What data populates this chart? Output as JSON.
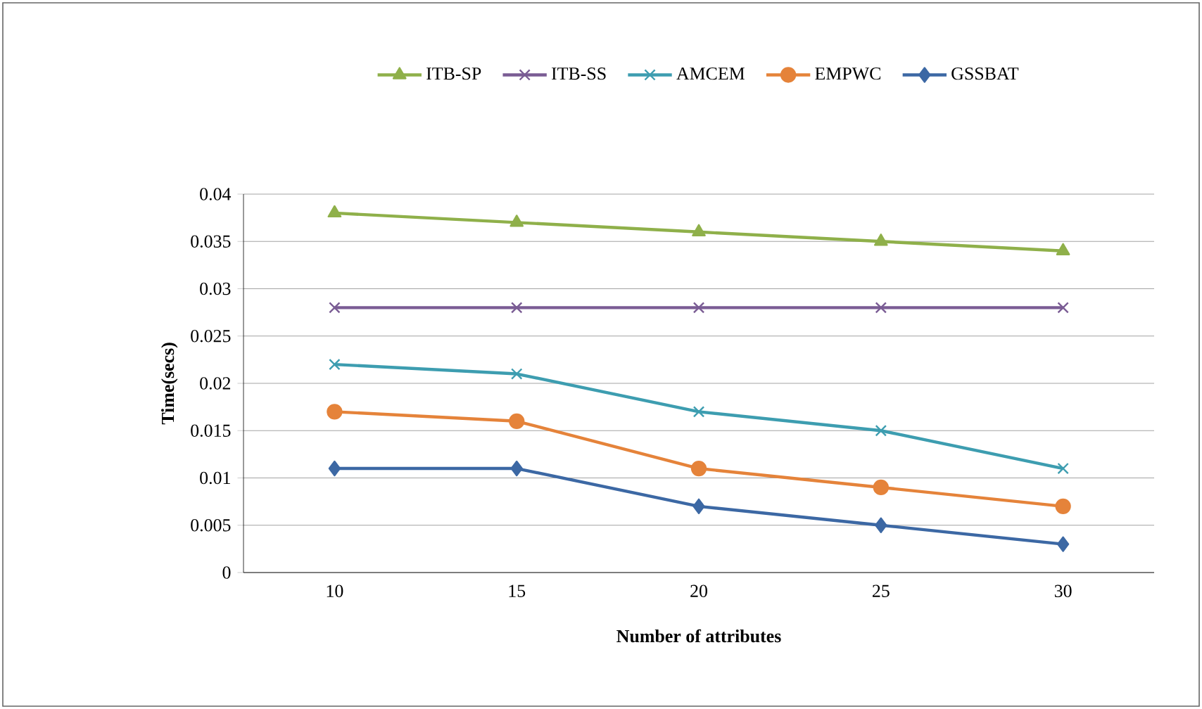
{
  "chart_data": {
    "type": "line",
    "xlabel": "Number of attributes",
    "ylabel": "Time(secs)",
    "categories": [
      "10",
      "15",
      "20",
      "25",
      "30"
    ],
    "series": [
      {
        "name": "ITB-SP",
        "color": "#8fb04a",
        "marker": "triangle",
        "values": [
          0.038,
          0.037,
          0.036,
          0.035,
          0.034
        ]
      },
      {
        "name": "ITB-SS",
        "color": "#7a5c94",
        "marker": "cross",
        "values": [
          0.028,
          0.028,
          0.028,
          0.028,
          0.028
        ]
      },
      {
        "name": "AMCEM",
        "color": "#3d9db0",
        "marker": "cross",
        "values": [
          0.022,
          0.021,
          0.017,
          0.015,
          0.011
        ]
      },
      {
        "name": "EMPWC",
        "color": "#e5833a",
        "marker": "circle",
        "values": [
          0.017,
          0.016,
          0.011,
          0.009,
          0.007
        ]
      },
      {
        "name": "GSSBAT",
        "color": "#3c68a4",
        "marker": "diamond",
        "values": [
          0.011,
          0.011,
          0.007,
          0.005,
          0.003
        ]
      }
    ],
    "ylim": [
      0,
      0.04
    ],
    "yticks": [
      0,
      0.005,
      0.01,
      0.015,
      0.02,
      0.025,
      0.03,
      0.035,
      0.04
    ],
    "grid": "y",
    "legend": "top"
  }
}
